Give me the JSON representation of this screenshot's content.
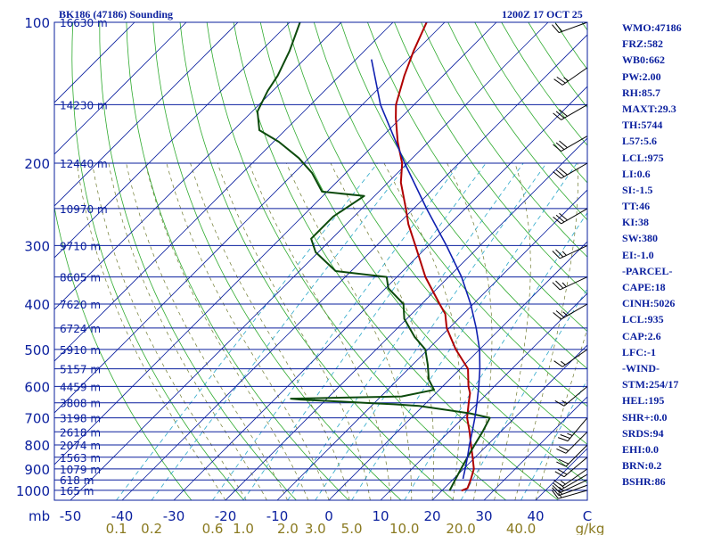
{
  "header": {
    "station": "BK186 (47186) Sounding",
    "valid": "1200Z 17 OCT 25"
  },
  "indices": [
    "WMO:47186",
    "FRZ:582",
    "WB0:662",
    "PW:2.00",
    "RH:85.7",
    "MAXT:29.3",
    "TH:5744",
    "L57:5.6",
    "LCL:975",
    "LI:0.6",
    "SI:-1.5",
    "TT:46",
    "KI:38",
    "SW:380",
    "EI:-1.0",
    "-PARCEL-",
    "CAPE:18",
    "CINH:5026",
    "LCL:935",
    "CAP:2.6",
    "LFC:-1",
    "-WIND-",
    "STM:254/17",
    "HEL:195",
    "SHR+:0.0",
    "SRDS:94",
    "EHI:0.0",
    "BRN:0.2",
    "BSHR:86"
  ],
  "colors": {
    "frame": "#0a1f9e",
    "isobar": "#0a1f9e",
    "isotherm": "#0a1f9e",
    "dry_adiabat": "#2eaa2e",
    "moist_adiabat": "#6e7a2e",
    "mixing_ratio": "#2aa7c9",
    "temperature": "#b00000",
    "dewpoint": "#0c4a0c",
    "parcel": "#1020b0",
    "wind": "#000000",
    "mixing_label": "#8a7a20"
  },
  "chart_data": {
    "type": "skew-t",
    "xlabel": "C",
    "xunit_label": "mb",
    "mixing_unit": "g/kg",
    "pressure_ticks": [
      100,
      200,
      300,
      400,
      500,
      600,
      700,
      800,
      900,
      1000
    ],
    "temperature_ticks": [
      -50,
      -40,
      -30,
      -20,
      -10,
      0,
      10,
      20,
      30,
      40
    ],
    "temperature_tick_labels": [
      "-50",
      "-40",
      "-30",
      "-20",
      "-10",
      "0",
      "10",
      "20",
      "30",
      "40"
    ],
    "mixing_ratio_labels": [
      "0.1",
      "0.2",
      "0.6",
      "1.0",
      "2.0",
      "3.0",
      "5.0",
      "10.0",
      "20.0",
      "40.0"
    ],
    "mixing_ratio_values": [
      0.1,
      0.2,
      0.6,
      1.0,
      2.0,
      3.0,
      5.0,
      10.0,
      20.0,
      40.0
    ],
    "height_labels": [
      {
        "p": 100,
        "label": "16630 m"
      },
      {
        "p": 150,
        "label": "14230 m"
      },
      {
        "p": 200,
        "label": "12440 m"
      },
      {
        "p": 250,
        "label": "10970 m"
      },
      {
        "p": 300,
        "label": "9710 m"
      },
      {
        "p": 350,
        "label": "8605 m"
      },
      {
        "p": 400,
        "label": "7620 m"
      },
      {
        "p": 450,
        "label": "6724 m"
      },
      {
        "p": 500,
        "label": "5910 m"
      },
      {
        "p": 550,
        "label": "5157 m"
      },
      {
        "p": 600,
        "label": "4459 m"
      },
      {
        "p": 650,
        "label": "3808 m"
      },
      {
        "p": 700,
        "label": "3198 m"
      },
      {
        "p": 750,
        "label": "2618 m"
      },
      {
        "p": 800,
        "label": "2074 m"
      },
      {
        "p": 850,
        "label": "1563 m"
      },
      {
        "p": 900,
        "label": "1079 m"
      },
      {
        "p": 950,
        "label": "618 m"
      },
      {
        "p": 1000,
        "label": "165 m"
      }
    ],
    "series": [
      {
        "key": "temperature",
        "points": [
          [
            1002,
            23.8
          ],
          [
            990,
            24.5
          ],
          [
            950,
            23.5
          ],
          [
            900,
            22.0
          ],
          [
            850,
            19.5
          ],
          [
            800,
            16.8
          ],
          [
            750,
            14.0
          ],
          [
            700,
            10.8
          ],
          [
            650,
            8.2
          ],
          [
            620,
            6.6
          ],
          [
            600,
            5.0
          ],
          [
            550,
            1.5
          ],
          [
            500,
            -4.6
          ],
          [
            450,
            -10.5
          ],
          [
            420,
            -13.5
          ],
          [
            400,
            -16.5
          ],
          [
            350,
            -24.5
          ],
          [
            300,
            -32.5
          ],
          [
            270,
            -38.0
          ],
          [
            250,
            -41.5
          ],
          [
            220,
            -47.5
          ],
          [
            200,
            -51.0
          ],
          [
            180,
            -56.0
          ],
          [
            160,
            -61.0
          ],
          [
            150,
            -63.5
          ],
          [
            130,
            -67.5
          ],
          [
            115,
            -70.5
          ],
          [
            100,
            -73.5
          ]
        ]
      },
      {
        "key": "dewpoint",
        "points": [
          [
            1002,
            21.5
          ],
          [
            950,
            20.5
          ],
          [
            900,
            19.5
          ],
          [
            850,
            18.5
          ],
          [
            800,
            17.5
          ],
          [
            750,
            16.5
          ],
          [
            700,
            15.2
          ],
          [
            685,
            10.5
          ],
          [
            660,
            -0.8
          ],
          [
            655,
            -6.0
          ],
          [
            650,
            -12.0
          ],
          [
            640,
            -25.0
          ],
          [
            637,
            -27.0
          ],
          [
            630,
            -6.0
          ],
          [
            610,
            -1.0
          ],
          [
            580,
            -4.0
          ],
          [
            540,
            -7.0
          ],
          [
            500,
            -10.5
          ],
          [
            470,
            -15.0
          ],
          [
            430,
            -20.5
          ],
          [
            400,
            -23.5
          ],
          [
            370,
            -29.5
          ],
          [
            350,
            -32.0
          ],
          [
            340,
            -43.0
          ],
          [
            310,
            -50.5
          ],
          [
            290,
            -54.0
          ],
          [
            260,
            -54.0
          ],
          [
            235,
            -52.0
          ],
          [
            230,
            -61.0
          ],
          [
            210,
            -66.5
          ],
          [
            195,
            -72.0
          ],
          [
            180,
            -79.0
          ],
          [
            170,
            -85.0
          ],
          [
            155,
            -89.0
          ],
          [
            140,
            -91.0
          ],
          [
            130,
            -92.0
          ],
          [
            115,
            -94.5
          ],
          [
            100,
            -98.0
          ]
        ]
      },
      {
        "key": "parcel",
        "points": [
          [
            945,
            21.8
          ],
          [
            900,
            20.3
          ],
          [
            850,
            18.5
          ],
          [
            800,
            16.5
          ],
          [
            750,
            14.5
          ],
          [
            700,
            12.3
          ],
          [
            650,
            9.8
          ],
          [
            600,
            7.0
          ],
          [
            550,
            3.8
          ],
          [
            500,
            0.0
          ],
          [
            450,
            -4.8
          ],
          [
            400,
            -10.5
          ],
          [
            350,
            -17.5
          ],
          [
            300,
            -26.5
          ],
          [
            250,
            -37.5
          ],
          [
            200,
            -50.5
          ],
          [
            150,
            -66.5
          ],
          [
            120,
            -77.0
          ]
        ]
      }
    ],
    "wind_barbs": [
      {
        "p": 1000,
        "dir": 254,
        "spd": 17
      },
      {
        "p": 975,
        "dir": 250,
        "spd": 15
      },
      {
        "p": 950,
        "dir": 245,
        "spd": 15
      },
      {
        "p": 925,
        "dir": 240,
        "spd": 15
      },
      {
        "p": 900,
        "dir": 235,
        "spd": 15
      },
      {
        "p": 850,
        "dir": 230,
        "spd": 20
      },
      {
        "p": 800,
        "dir": 225,
        "spd": 20
      },
      {
        "p": 750,
        "dir": 225,
        "spd": 20
      },
      {
        "p": 700,
        "dir": 220,
        "spd": 25
      },
      {
        "p": 600,
        "dir": 230,
        "spd": 15
      },
      {
        "p": 500,
        "dir": 235,
        "spd": 15
      },
      {
        "p": 400,
        "dir": 240,
        "spd": 25
      },
      {
        "p": 350,
        "dir": 245,
        "spd": 25
      },
      {
        "p": 300,
        "dir": 245,
        "spd": 25
      },
      {
        "p": 250,
        "dir": 240,
        "spd": 30
      },
      {
        "p": 200,
        "dir": 240,
        "spd": 30
      },
      {
        "p": 175,
        "dir": 240,
        "spd": 30
      },
      {
        "p": 150,
        "dir": 240,
        "spd": 30
      },
      {
        "p": 125,
        "dir": 235,
        "spd": 25
      },
      {
        "p": 100,
        "dir": 250,
        "spd": 20
      }
    ]
  }
}
